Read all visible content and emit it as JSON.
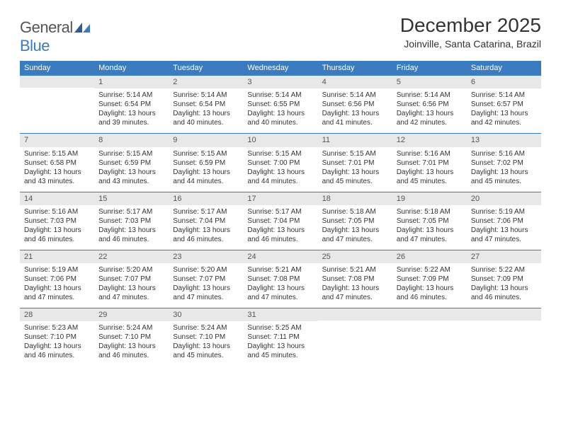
{
  "logo": {
    "text_general": "General",
    "text_blue": "Blue"
  },
  "title": "December 2025",
  "location": "Joinville, Santa Catarina, Brazil",
  "colors": {
    "header_bg": "#3b7bbf",
    "header_text": "#ffffff",
    "daynum_bg": "#e8e8e8",
    "rule": "#3b7bbf",
    "body_text": "#333333"
  },
  "font": {
    "daynum_size": 11,
    "body_size": 10,
    "title_size": 28,
    "location_size": 14
  },
  "weekdays": [
    "Sunday",
    "Monday",
    "Tuesday",
    "Wednesday",
    "Thursday",
    "Friday",
    "Saturday"
  ],
  "weeks": [
    [
      null,
      {
        "n": "1",
        "sr": "Sunrise: 5:14 AM",
        "ss": "Sunset: 6:54 PM",
        "d1": "Daylight: 13 hours",
        "d2": "and 39 minutes."
      },
      {
        "n": "2",
        "sr": "Sunrise: 5:14 AM",
        "ss": "Sunset: 6:54 PM",
        "d1": "Daylight: 13 hours",
        "d2": "and 40 minutes."
      },
      {
        "n": "3",
        "sr": "Sunrise: 5:14 AM",
        "ss": "Sunset: 6:55 PM",
        "d1": "Daylight: 13 hours",
        "d2": "and 40 minutes."
      },
      {
        "n": "4",
        "sr": "Sunrise: 5:14 AM",
        "ss": "Sunset: 6:56 PM",
        "d1": "Daylight: 13 hours",
        "d2": "and 41 minutes."
      },
      {
        "n": "5",
        "sr": "Sunrise: 5:14 AM",
        "ss": "Sunset: 6:56 PM",
        "d1": "Daylight: 13 hours",
        "d2": "and 42 minutes."
      },
      {
        "n": "6",
        "sr": "Sunrise: 5:14 AM",
        "ss": "Sunset: 6:57 PM",
        "d1": "Daylight: 13 hours",
        "d2": "and 42 minutes."
      }
    ],
    [
      {
        "n": "7",
        "sr": "Sunrise: 5:15 AM",
        "ss": "Sunset: 6:58 PM",
        "d1": "Daylight: 13 hours",
        "d2": "and 43 minutes."
      },
      {
        "n": "8",
        "sr": "Sunrise: 5:15 AM",
        "ss": "Sunset: 6:59 PM",
        "d1": "Daylight: 13 hours",
        "d2": "and 43 minutes."
      },
      {
        "n": "9",
        "sr": "Sunrise: 5:15 AM",
        "ss": "Sunset: 6:59 PM",
        "d1": "Daylight: 13 hours",
        "d2": "and 44 minutes."
      },
      {
        "n": "10",
        "sr": "Sunrise: 5:15 AM",
        "ss": "Sunset: 7:00 PM",
        "d1": "Daylight: 13 hours",
        "d2": "and 44 minutes."
      },
      {
        "n": "11",
        "sr": "Sunrise: 5:15 AM",
        "ss": "Sunset: 7:01 PM",
        "d1": "Daylight: 13 hours",
        "d2": "and 45 minutes."
      },
      {
        "n": "12",
        "sr": "Sunrise: 5:16 AM",
        "ss": "Sunset: 7:01 PM",
        "d1": "Daylight: 13 hours",
        "d2": "and 45 minutes."
      },
      {
        "n": "13",
        "sr": "Sunrise: 5:16 AM",
        "ss": "Sunset: 7:02 PM",
        "d1": "Daylight: 13 hours",
        "d2": "and 45 minutes."
      }
    ],
    [
      {
        "n": "14",
        "sr": "Sunrise: 5:16 AM",
        "ss": "Sunset: 7:03 PM",
        "d1": "Daylight: 13 hours",
        "d2": "and 46 minutes."
      },
      {
        "n": "15",
        "sr": "Sunrise: 5:17 AM",
        "ss": "Sunset: 7:03 PM",
        "d1": "Daylight: 13 hours",
        "d2": "and 46 minutes."
      },
      {
        "n": "16",
        "sr": "Sunrise: 5:17 AM",
        "ss": "Sunset: 7:04 PM",
        "d1": "Daylight: 13 hours",
        "d2": "and 46 minutes."
      },
      {
        "n": "17",
        "sr": "Sunrise: 5:17 AM",
        "ss": "Sunset: 7:04 PM",
        "d1": "Daylight: 13 hours",
        "d2": "and 46 minutes."
      },
      {
        "n": "18",
        "sr": "Sunrise: 5:18 AM",
        "ss": "Sunset: 7:05 PM",
        "d1": "Daylight: 13 hours",
        "d2": "and 47 minutes."
      },
      {
        "n": "19",
        "sr": "Sunrise: 5:18 AM",
        "ss": "Sunset: 7:05 PM",
        "d1": "Daylight: 13 hours",
        "d2": "and 47 minutes."
      },
      {
        "n": "20",
        "sr": "Sunrise: 5:19 AM",
        "ss": "Sunset: 7:06 PM",
        "d1": "Daylight: 13 hours",
        "d2": "and 47 minutes."
      }
    ],
    [
      {
        "n": "21",
        "sr": "Sunrise: 5:19 AM",
        "ss": "Sunset: 7:06 PM",
        "d1": "Daylight: 13 hours",
        "d2": "and 47 minutes."
      },
      {
        "n": "22",
        "sr": "Sunrise: 5:20 AM",
        "ss": "Sunset: 7:07 PM",
        "d1": "Daylight: 13 hours",
        "d2": "and 47 minutes."
      },
      {
        "n": "23",
        "sr": "Sunrise: 5:20 AM",
        "ss": "Sunset: 7:07 PM",
        "d1": "Daylight: 13 hours",
        "d2": "and 47 minutes."
      },
      {
        "n": "24",
        "sr": "Sunrise: 5:21 AM",
        "ss": "Sunset: 7:08 PM",
        "d1": "Daylight: 13 hours",
        "d2": "and 47 minutes."
      },
      {
        "n": "25",
        "sr": "Sunrise: 5:21 AM",
        "ss": "Sunset: 7:08 PM",
        "d1": "Daylight: 13 hours",
        "d2": "and 47 minutes."
      },
      {
        "n": "26",
        "sr": "Sunrise: 5:22 AM",
        "ss": "Sunset: 7:09 PM",
        "d1": "Daylight: 13 hours",
        "d2": "and 46 minutes."
      },
      {
        "n": "27",
        "sr": "Sunrise: 5:22 AM",
        "ss": "Sunset: 7:09 PM",
        "d1": "Daylight: 13 hours",
        "d2": "and 46 minutes."
      }
    ],
    [
      {
        "n": "28",
        "sr": "Sunrise: 5:23 AM",
        "ss": "Sunset: 7:10 PM",
        "d1": "Daylight: 13 hours",
        "d2": "and 46 minutes."
      },
      {
        "n": "29",
        "sr": "Sunrise: 5:24 AM",
        "ss": "Sunset: 7:10 PM",
        "d1": "Daylight: 13 hours",
        "d2": "and 46 minutes."
      },
      {
        "n": "30",
        "sr": "Sunrise: 5:24 AM",
        "ss": "Sunset: 7:10 PM",
        "d1": "Daylight: 13 hours",
        "d2": "and 45 minutes."
      },
      {
        "n": "31",
        "sr": "Sunrise: 5:25 AM",
        "ss": "Sunset: 7:11 PM",
        "d1": "Daylight: 13 hours",
        "d2": "and 45 minutes."
      },
      null,
      null,
      null
    ]
  ]
}
